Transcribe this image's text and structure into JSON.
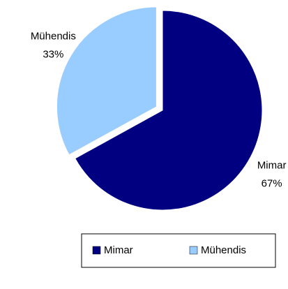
{
  "chart_data": {
    "type": "pie",
    "categories": [
      "Mimar",
      "Mühendis"
    ],
    "values": [
      67,
      33
    ],
    "value_labels": [
      "67%",
      "33%"
    ],
    "colors": [
      "#000080",
      "#99ccff"
    ],
    "explode": [
      false,
      true
    ],
    "legend": "bottom"
  }
}
